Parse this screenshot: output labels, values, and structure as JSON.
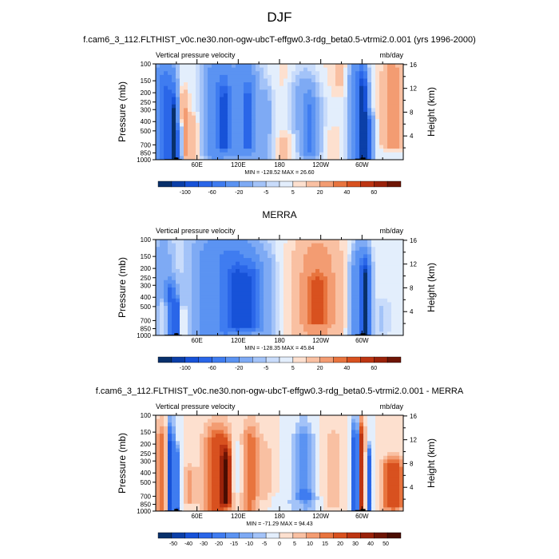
{
  "figure": {
    "main_title": "DJF",
    "bg_color": "#ffffff"
  },
  "chart_data": [
    {
      "type": "heatmap",
      "title": "f.cam6_3_112.FLTHIST_v0c.ne30.non-ogw-ubcT-effgw0.3-rdg_beta0.5-vtrmi2.0.001 (yrs 1996-2000)",
      "left_string": "Vertical pressure velocity",
      "right_string": "mb/day",
      "xlabel": "",
      "ylabel": "Pressure (mb)",
      "ylabel_right": "Height (km)",
      "x_ticks": [
        "60E",
        "120E",
        "180",
        "120W",
        "60W"
      ],
      "x_tick_lon": [
        60,
        120,
        180,
        240,
        300
      ],
      "xlim": [
        0,
        360
      ],
      "y_ticks": [
        "100",
        "150",
        "200",
        "250",
        "300",
        "400",
        "500",
        "700",
        "850",
        "1000"
      ],
      "y_tick_values": [
        100,
        150,
        200,
        250,
        300,
        400,
        500,
        700,
        850,
        1000
      ],
      "ylim": [
        1000,
        100
      ],
      "y_ticks_right": [
        "4",
        "8",
        "12",
        "16"
      ],
      "y_right_values": [
        4,
        8,
        12,
        16
      ],
      "stats": "MIN = -128.52  MAX = 26.60",
      "colorbar_labels": [
        "-100",
        "-60",
        "-20",
        "-5",
        "5",
        "20",
        "40",
        "60"
      ],
      "colorbar_levels": [
        -120,
        -100,
        -80,
        -60,
        -40,
        -20,
        -10,
        -5,
        -2,
        2,
        5,
        10,
        20,
        30,
        40,
        60,
        80
      ],
      "colorbar_colors": [
        "#08306b",
        "#0b3fa8",
        "#1752d8",
        "#2a66e8",
        "#3f7cf0",
        "#5b93f2",
        "#7eaaf4",
        "#a3c3f8",
        "#c9dcfb",
        "#e3eefc",
        "#fde0cf",
        "#f9c0a2",
        "#f39c72",
        "#e8743e",
        "#d8511f",
        "#bd3512",
        "#9a220a",
        "#6e1505"
      ],
      "features": [
        {
          "lon": 6,
          "p0": 1000,
          "p1": 150,
          "w": 6,
          "v": -20
        },
        {
          "lon": 18,
          "p0": 1000,
          "p1": 180,
          "w": 8,
          "v": -60
        },
        {
          "lon": 27,
          "p0": 1000,
          "p1": 300,
          "w": 3,
          "v": -90
        },
        {
          "lon": 34,
          "p0": 1000,
          "p1": 500,
          "w": 3,
          "v": -40
        },
        {
          "lon": 40,
          "p0": 900,
          "p1": 250,
          "w": 6,
          "v": 12
        },
        {
          "lon": 55,
          "p0": 1000,
          "p1": 400,
          "w": 8,
          "v": 8
        },
        {
          "lon": 90,
          "p0": 900,
          "p1": 150,
          "w": 14,
          "v": -35
        },
        {
          "lon": 100,
          "p0": 700,
          "p1": 250,
          "w": 6,
          "v": -70
        },
        {
          "lon": 128,
          "p0": 900,
          "p1": 150,
          "w": 14,
          "v": -30
        },
        {
          "lon": 135,
          "p0": 700,
          "p1": 250,
          "w": 5,
          "v": -55
        },
        {
          "lon": 160,
          "p0": 1000,
          "p1": 250,
          "w": 8,
          "v": -12
        },
        {
          "lon": 188,
          "p0": 1000,
          "p1": 150,
          "w": 10,
          "v": 5
        },
        {
          "lon": 216,
          "p0": 1000,
          "p1": 200,
          "w": 18,
          "v": -15
        },
        {
          "lon": 224,
          "p0": 800,
          "p1": 300,
          "w": 6,
          "v": -35
        },
        {
          "lon": 200,
          "p0": 1000,
          "p1": 600,
          "w": 14,
          "v": 8
        },
        {
          "lon": 270,
          "p0": 150,
          "p1": 100,
          "w": 20,
          "v": 6
        },
        {
          "lon": 293,
          "p0": 1000,
          "p1": 150,
          "w": 8,
          "v": -45
        },
        {
          "lon": 302,
          "p0": 1000,
          "p1": 200,
          "w": 4,
          "v": -100
        },
        {
          "lon": 310,
          "p0": 1000,
          "p1": 400,
          "w": 4,
          "v": -50
        },
        {
          "lon": 345,
          "p0": 700,
          "p1": 150,
          "w": 12,
          "v": 15
        },
        {
          "lon": 258,
          "p0": 1000,
          "p1": 500,
          "w": 10,
          "v": 5
        }
      ]
    },
    {
      "type": "heatmap",
      "title": "MERRA",
      "left_string": "Vertical pressure velocity",
      "right_string": "mb/day",
      "xlabel": "",
      "ylabel": "Pressure (mb)",
      "ylabel_right": "Height (km)",
      "x_ticks": [
        "60E",
        "120E",
        "180",
        "120W",
        "60W"
      ],
      "x_tick_lon": [
        60,
        120,
        180,
        240,
        300
      ],
      "xlim": [
        0,
        360
      ],
      "y_ticks": [
        "100",
        "150",
        "200",
        "250",
        "300",
        "400",
        "500",
        "700",
        "850",
        "1000"
      ],
      "y_tick_values": [
        100,
        150,
        200,
        250,
        300,
        400,
        500,
        700,
        850,
        1000
      ],
      "ylim": [
        1000,
        100
      ],
      "y_ticks_right": [
        "4",
        "8",
        "12",
        "16"
      ],
      "y_right_values": [
        4,
        8,
        12,
        16
      ],
      "stats": "MIN = -128.35  MAX = 45.84",
      "colorbar_labels": [
        "-100",
        "-60",
        "-20",
        "-5",
        "5",
        "20",
        "40",
        "60"
      ],
      "colorbar_levels": [
        -120,
        -100,
        -80,
        -60,
        -40,
        -20,
        -10,
        -5,
        -2,
        2,
        5,
        10,
        20,
        30,
        40,
        60,
        80
      ],
      "colorbar_colors": [
        "#08306b",
        "#0b3fa8",
        "#1752d8",
        "#2a66e8",
        "#3f7cf0",
        "#5b93f2",
        "#7eaaf4",
        "#a3c3f8",
        "#c9dcfb",
        "#e3eefc",
        "#fde0cf",
        "#f9c0a2",
        "#f39c72",
        "#e8743e",
        "#d8511f",
        "#bd3512",
        "#9a220a",
        "#6e1505"
      ],
      "features": [
        {
          "lon": 10,
          "p0": 1000,
          "p1": 150,
          "w": 10,
          "v": -15
        },
        {
          "lon": 22,
          "p0": 1000,
          "p1": 350,
          "w": 5,
          "v": -60
        },
        {
          "lon": 14,
          "p0": 950,
          "p1": 500,
          "w": 5,
          "v": 25
        },
        {
          "lon": 30,
          "p0": 1000,
          "p1": 500,
          "w": 3,
          "v": -70
        },
        {
          "lon": 40,
          "p0": 1000,
          "p1": 600,
          "w": 5,
          "v": 10
        },
        {
          "lon": 100,
          "p0": 950,
          "p1": 150,
          "w": 30,
          "v": -40
        },
        {
          "lon": 120,
          "p0": 800,
          "p1": 250,
          "w": 10,
          "v": -60
        },
        {
          "lon": 140,
          "p0": 800,
          "p1": 250,
          "w": 8,
          "v": -50
        },
        {
          "lon": 160,
          "p0": 1000,
          "p1": 200,
          "w": 10,
          "v": -10
        },
        {
          "lon": 235,
          "p0": 1000,
          "p1": 150,
          "w": 28,
          "v": 12
        },
        {
          "lon": 235,
          "p0": 700,
          "p1": 300,
          "w": 12,
          "v": 25
        },
        {
          "lon": 298,
          "p0": 1000,
          "p1": 200,
          "w": 9,
          "v": -45
        },
        {
          "lon": 305,
          "p0": 1000,
          "p1": 250,
          "w": 4,
          "v": -100
        },
        {
          "lon": 330,
          "p0": 900,
          "p1": 500,
          "w": 10,
          "v": -5
        }
      ]
    },
    {
      "type": "heatmap",
      "title": "f.cam6_3_112.FLTHIST_v0c.ne30.non-ogw-ubcT-effgw0.3-rdg_beta0.5-vtrmi2.0.001 - MERRA",
      "left_string": "Vertical pressure velocity",
      "right_string": "mb/day",
      "xlabel": "",
      "ylabel": "Pressure (mb)",
      "ylabel_right": "Height (km)",
      "x_ticks": [
        "60E",
        "120E",
        "180",
        "120W",
        "60W"
      ],
      "x_tick_lon": [
        60,
        120,
        180,
        240,
        300
      ],
      "xlim": [
        0,
        360
      ],
      "y_ticks": [
        "100",
        "150",
        "200",
        "250",
        "300",
        "400",
        "500",
        "700",
        "850",
        "1000"
      ],
      "y_tick_values": [
        100,
        150,
        200,
        250,
        300,
        400,
        500,
        700,
        850,
        1000
      ],
      "ylim": [
        1000,
        100
      ],
      "y_ticks_right": [
        "4",
        "8",
        "12",
        "16"
      ],
      "y_right_values": [
        4,
        8,
        12,
        16
      ],
      "stats": "MIN = -71.29  MAX = 94.43",
      "colorbar_labels": [
        "-50",
        "-40",
        "-30",
        "-20",
        "-15",
        "-10",
        "-5",
        "0",
        "5",
        "10",
        "15",
        "20",
        "30",
        "40",
        "50"
      ],
      "colorbar_levels": [
        -60,
        -50,
        -40,
        -30,
        -20,
        -15,
        -10,
        -5,
        0,
        5,
        10,
        15,
        20,
        30,
        40,
        50,
        60
      ],
      "colorbar_colors": [
        "#08306b",
        "#0b3fa8",
        "#1752d8",
        "#2a66e8",
        "#3f7cf0",
        "#5b93f2",
        "#7eaaf4",
        "#a3c3f8",
        "#e3eefc",
        "#fde0cf",
        "#f9c0a2",
        "#f39c72",
        "#e8743e",
        "#d8511f",
        "#bd3512",
        "#9a220a",
        "#6e1505",
        "#4a0d02"
      ],
      "features": [
        {
          "lon": 8,
          "p0": 1000,
          "p1": 200,
          "w": 6,
          "v": 20
        },
        {
          "lon": 22,
          "p0": 1000,
          "p1": 200,
          "w": 3,
          "v": -50
        },
        {
          "lon": 32,
          "p0": 1000,
          "p1": 300,
          "w": 3,
          "v": -30
        },
        {
          "lon": 48,
          "p0": 800,
          "p1": 400,
          "w": 8,
          "v": 10
        },
        {
          "lon": 90,
          "p0": 950,
          "p1": 200,
          "w": 14,
          "v": 25
        },
        {
          "lon": 102,
          "p0": 800,
          "p1": 300,
          "w": 5,
          "v": 45
        },
        {
          "lon": 138,
          "p0": 950,
          "p1": 200,
          "w": 9,
          "v": 20
        },
        {
          "lon": 118,
          "p0": 600,
          "p1": 250,
          "w": 5,
          "v": -10
        },
        {
          "lon": 160,
          "p0": 900,
          "p1": 250,
          "w": 6,
          "v": 8
        },
        {
          "lon": 215,
          "p0": 700,
          "p1": 200,
          "w": 10,
          "v": -20
        },
        {
          "lon": 220,
          "p0": 1000,
          "p1": 700,
          "w": 10,
          "v": -8
        },
        {
          "lon": 258,
          "p0": 900,
          "p1": 200,
          "w": 10,
          "v": 8
        },
        {
          "lon": 290,
          "p0": 1000,
          "p1": 200,
          "w": 3,
          "v": -50
        },
        {
          "lon": 300,
          "p0": 1000,
          "p1": 200,
          "w": 3,
          "v": 40
        },
        {
          "lon": 310,
          "p0": 1000,
          "p1": 300,
          "w": 3,
          "v": -40
        },
        {
          "lon": 345,
          "p0": 900,
          "p1": 350,
          "w": 12,
          "v": 25
        },
        {
          "lon": 175,
          "p0": 1000,
          "p1": 800,
          "w": 40,
          "v": -5
        }
      ]
    }
  ]
}
